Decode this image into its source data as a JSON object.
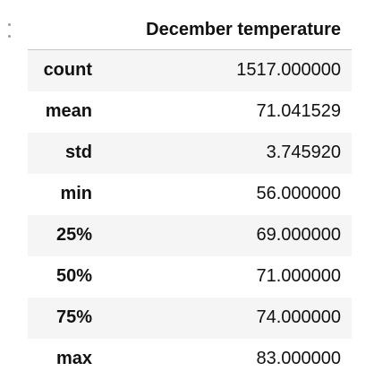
{
  "table": {
    "column_header": "December temperature",
    "rows": [
      {
        "label": "count",
        "value": "1517.000000"
      },
      {
        "label": "mean",
        "value": "71.041529"
      },
      {
        "label": "std",
        "value": "3.745920"
      },
      {
        "label": "min",
        "value": "56.000000"
      },
      {
        "label": "25%",
        "value": "69.000000"
      },
      {
        "label": "50%",
        "value": "71.000000"
      },
      {
        "label": "75%",
        "value": "74.000000"
      },
      {
        "label": "max",
        "value": "83.000000"
      }
    ]
  },
  "icons": {
    "cell_handle": "drag-handle-icon"
  }
}
